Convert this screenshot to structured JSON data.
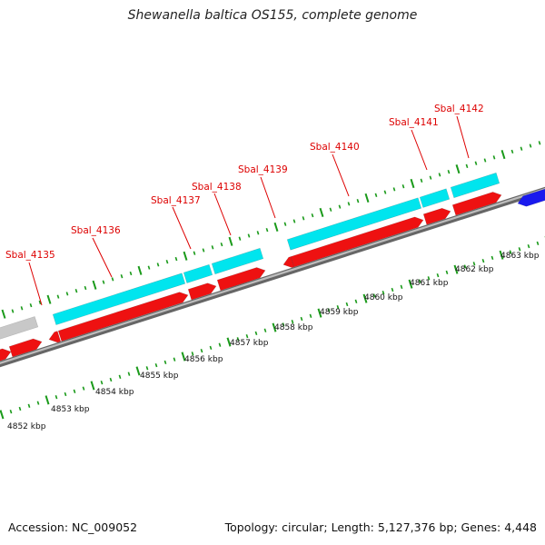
{
  "title": "Shewanella baltica OS155, complete genome",
  "footer": {
    "accession": "Accession: NC_009052",
    "topology": "Topology: circular; Length: 5,127,376 bp; Genes: 4,448"
  },
  "colors": {
    "background": "#ffffff",
    "backbone": "#888888",
    "cds_forward": "#00e5ee",
    "cds_reverse": "#ee1111",
    "cds_other_forward": "#c8c8c8",
    "cds_blue": "#1a1aee",
    "gene_label": "#dd0000",
    "tick": "#1a9a1a",
    "kbp_label": "#111111"
  },
  "kbp_labels": [
    "4852 kbp",
    "4853 kbp",
    "4854 kbp",
    "4855 kbp",
    "4856 kbp",
    "4857 kbp",
    "4858 kbp",
    "4859 kbp",
    "4860 kbp",
    "4861 kbp",
    "4862 kbp",
    "4863 kbp"
  ],
  "gene_labels": [
    "Sbal_4135",
    "Sbal_4136",
    "Sbal_4137",
    "Sbal_4138",
    "Sbal_4139",
    "Sbal_4140",
    "Sbal_4141",
    "Sbal_4142"
  ]
}
